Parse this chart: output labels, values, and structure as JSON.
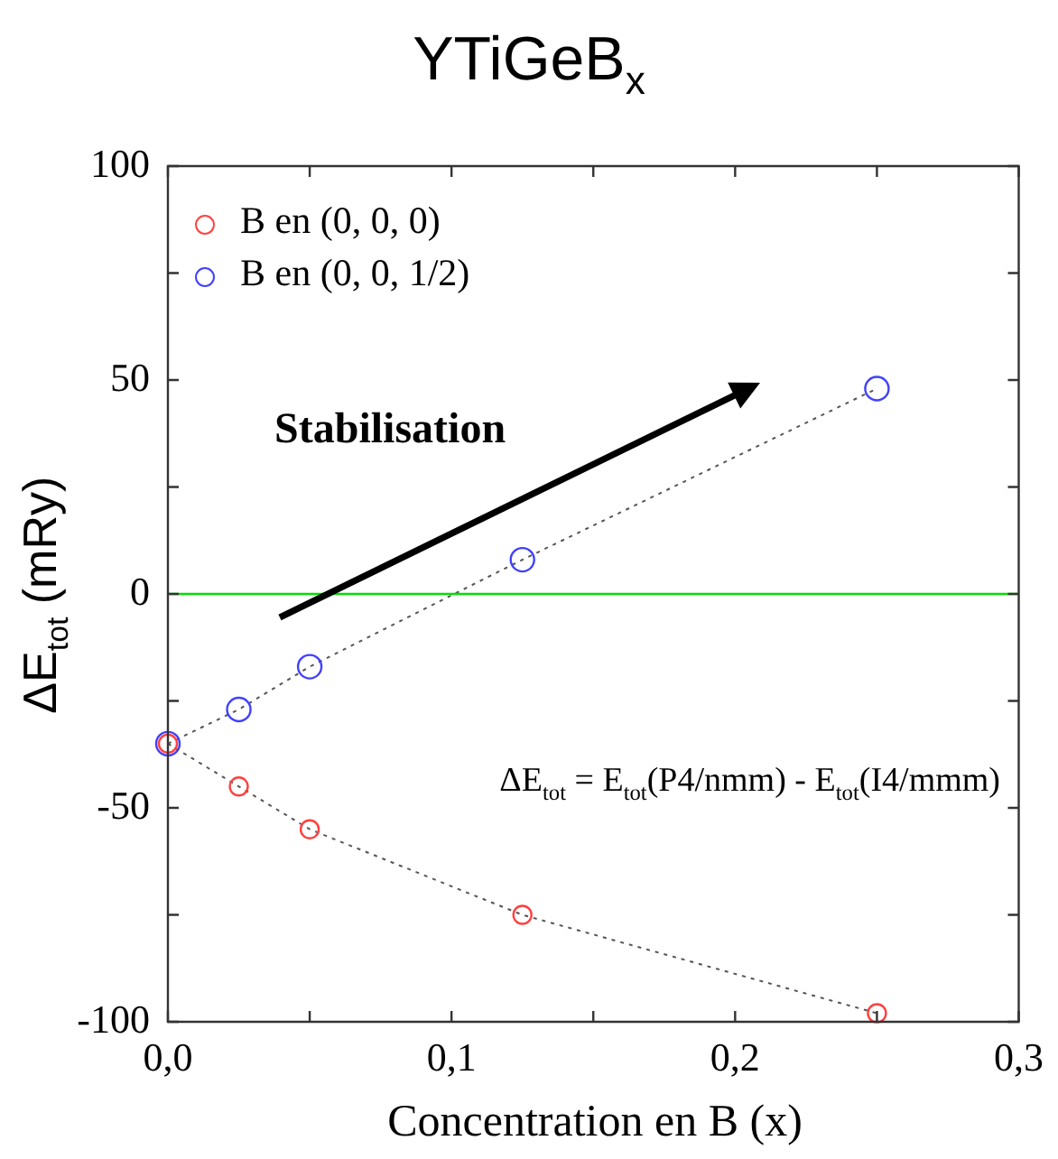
{
  "chart_data": {
    "type": "line",
    "title": "YTiGeB$_{x}$",
    "xlabel": "Concentration en B (x)",
    "ylabel": "ΔE$_{tot}$ (mRy)",
    "x": [
      0,
      0.025,
      0.05,
      0.125,
      0.25
    ],
    "series": [
      {
        "name": "B en (0, 0, 0)",
        "color": "#ff4040",
        "values": [
          -35,
          -45,
          -55,
          -75,
          -98
        ]
      },
      {
        "name": "B en (0, 0, 1/2)",
        "color": "#4040ff",
        "values": [
          -35,
          -27,
          -17,
          8,
          48
        ]
      }
    ],
    "xlim": [
      0,
      0.3
    ],
    "xticks": [
      {
        "value": 0,
        "label": "0,0"
      },
      {
        "value": 0.05,
        "label": null
      },
      {
        "value": 0.1,
        "label": "0,1"
      },
      {
        "value": 0.15,
        "label": null
      },
      {
        "value": 0.2,
        "label": "0,2"
      },
      {
        "value": 0.25,
        "label": null
      },
      {
        "value": 0.3,
        "label": "0,3"
      }
    ],
    "ylim": [
      -100,
      100
    ],
    "yticks": [
      -100,
      {
        "value": -75,
        "label": null
      },
      -50,
      {
        "value": -25,
        "label": null
      },
      0,
      {
        "value": 25,
        "label": null
      },
      50,
      {
        "value": 75,
        "label": null
      },
      100
    ],
    "ref_lines": [
      {
        "axis": "y",
        "value": 0,
        "color": "#00e000"
      }
    ],
    "annotations": [
      "Stabilisation",
      "ΔE$_{tot}$ = E$_{tot}$(P4/nmm) - E$_{tot}$(I4/mmm)"
    ],
    "marker": "circle",
    "line_style": "dotted",
    "legend": "top left",
    "grid": false
  }
}
